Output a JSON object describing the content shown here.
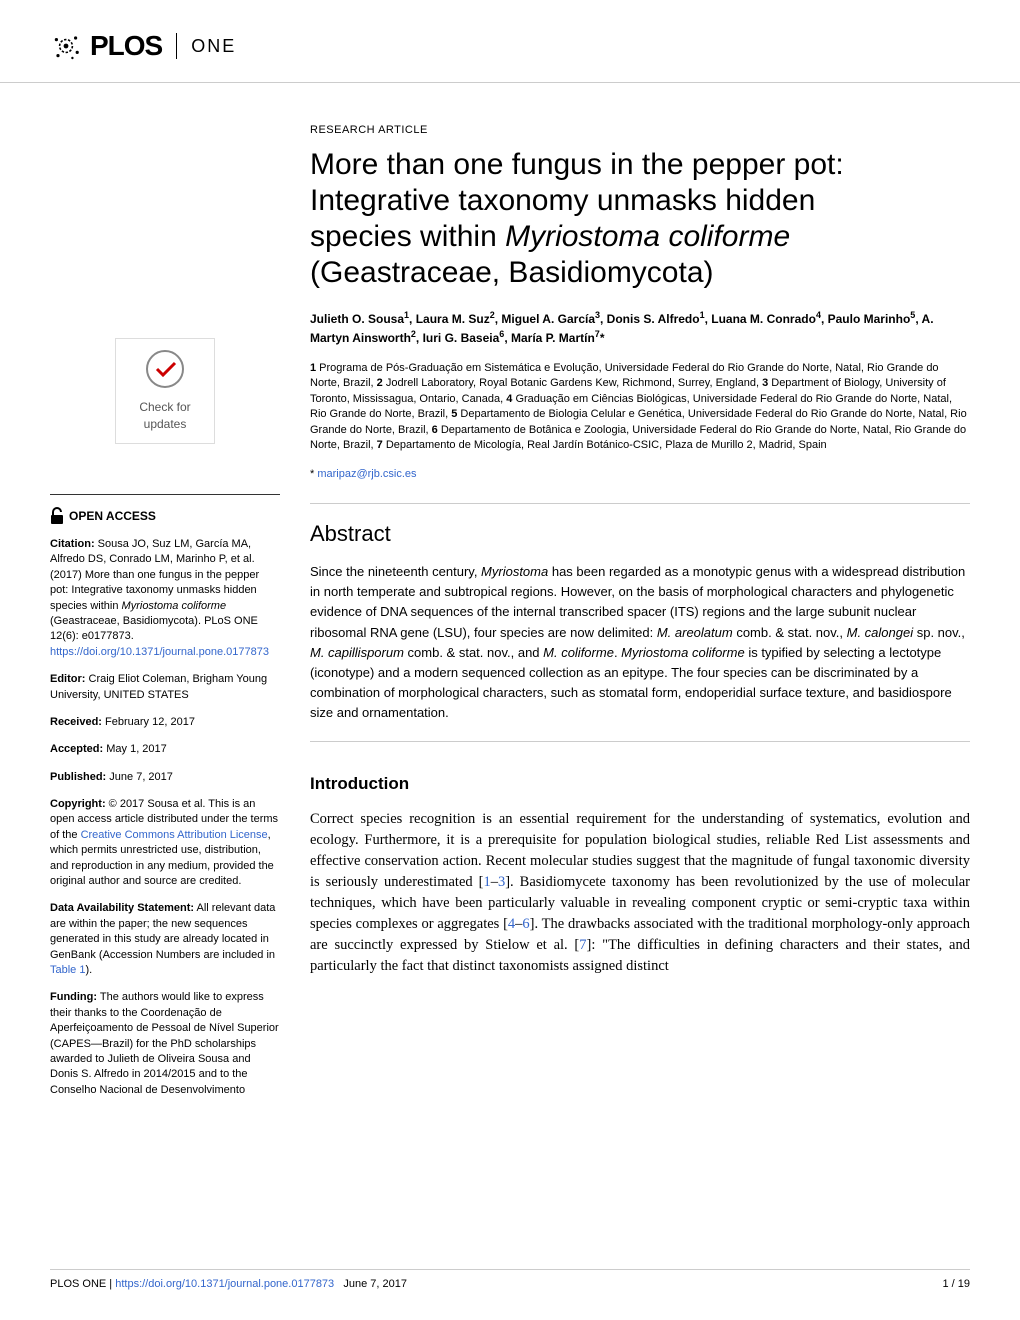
{
  "journal": {
    "name_part1": "PLOS",
    "name_part2": "ONE"
  },
  "article": {
    "type": "RESEARCH ARTICLE",
    "title_line1": "More than one fungus in the pepper pot:",
    "title_line2": "Integrative taxonomy unmasks hidden",
    "title_line3_pre": "species within ",
    "title_line3_italic": "Myriostoma coliforme",
    "title_line4": "(Geastraceae, Basidiomycota)"
  },
  "authors_html": "Julieth O. Sousa<sup>1</sup>, Laura M. Suz<sup>2</sup>, Miguel A. García<sup>3</sup>, Donis S. Alfredo<sup>1</sup>, Luana M. Conrado<sup>4</sup>, Paulo Marinho<sup>5</sup>, A. Martyn Ainsworth<sup>2</sup>, Iuri G. Baseia<sup>6</sup>, María P. Martín<sup>7</sup>*",
  "affiliations_html": "<span class='aff-num'>1</span> Programa de Pós-Graduação em Sistemática e Evolução, Universidade Federal do Rio Grande do Norte, Natal, Rio Grande do Norte, Brazil, <span class='aff-num'>2</span> Jodrell Laboratory, Royal Botanic Gardens Kew, Richmond, Surrey, England, <span class='aff-num'>3</span> Department of Biology, University of Toronto, Mississagua, Ontario, Canada, <span class='aff-num'>4</span> Graduação em Ciências Biológicas, Universidade Federal do Rio Grande do Norte, Natal, Rio Grande do Norte, Brazil, <span class='aff-num'>5</span> Departamento de Biologia Celular e Genética, Universidade Federal do Rio Grande do Norte, Natal, Rio Grande do Norte, Brazil, <span class='aff-num'>6</span> Departamento de Botânica e Zoologia, Universidade Federal do Rio Grande do Norte, Natal, Rio Grande do Norte, Brazil, <span class='aff-num'>7</span> Departamento de Micología, Real Jardín Botánico-CSIC, Plaza de Murillo 2, Madrid, Spain",
  "correspondence": {
    "star": "*",
    "email": "maripaz@rjb.csic.es"
  },
  "abstract": {
    "heading": "Abstract",
    "text_html": "Since the nineteenth century, <span class='italic'>Myriostoma</span> has been regarded as a monotypic genus with a widespread distribution in north temperate and subtropical regions. However, on the basis of morphological characters and phylogenetic evidence of DNA sequences of the internal transcribed spacer (ITS) regions and the large subunit nuclear ribosomal RNA gene (LSU), four species are now delimited: <span class='italic'>M. areolatum</span> comb. & stat. nov., <span class='italic'>M. calongei</span> sp. nov., <span class='italic'>M. capillisporum</span> comb. & stat. nov., and <span class='italic'>M. coliforme</span>. <span class='italic'>Myriostoma coliforme</span> is typified by selecting a lectotype (iconotype) and a modern sequenced collection as an epitype. The four species can be discriminated by a combination of morphological characters, such as stomatal form, endoperidial surface texture, and basidiospore size and ornamentation."
  },
  "intro": {
    "heading": "Introduction",
    "text_html": "Correct species recognition is an essential requirement for the understanding of systematics, evolution and ecology. Furthermore, it is a prerequisite for population biological studies, reliable Red List assessments and effective conservation action. Recent molecular studies suggest that the magnitude of fungal taxonomic diversity is seriously underestimated [<span class='link'>1</span>–<span class='link'>3</span>]. Basidiomycete taxonomy has been revolutionized by the use of molecular techniques, which have been particularly valuable in revealing component cryptic or semi-cryptic taxa within species complexes or aggregates [<span class='link'>4</span>–<span class='link'>6</span>]. The drawbacks associated with the traditional morphology-only approach are succinctly expressed by Stielow et al. [<span class='link'>7</span>]: \"The difficulties in defining characters and their states, and particularly the fact that distinct taxonomists assigned distinct"
  },
  "sidebar": {
    "check_updates": "Check for updates",
    "open_access": "OPEN ACCESS",
    "citation_label": "Citation:",
    "citation_text": " Sousa JO, Suz LM, García MA, Alfredo DS, Conrado LM, Marinho P, et al. (2017) More than one fungus in the pepper pot: Integrative taxonomy unmasks hidden species within ",
    "citation_italic": "Myriostoma coliforme",
    "citation_text2": " (Geastraceae, Basidiomycota). PLoS ONE 12(6): e0177873. ",
    "citation_doi": "https://doi.org/10.1371/journal.pone.0177873",
    "editor_label": "Editor:",
    "editor_text": " Craig Eliot Coleman, Brigham Young University, UNITED STATES",
    "received_label": "Received:",
    "received_text": " February 12, 2017",
    "accepted_label": "Accepted:",
    "accepted_text": " May 1, 2017",
    "published_label": "Published:",
    "published_text": " June 7, 2017",
    "copyright_label": "Copyright:",
    "copyright_text1": " © 2017 Sousa et al. This is an open access article distributed under the terms of the ",
    "copyright_link": "Creative Commons Attribution License",
    "copyright_text2": ", which permits unrestricted use, distribution, and reproduction in any medium, provided the original author and source are credited.",
    "data_label": "Data Availability Statement:",
    "data_text1": " All relevant data are within the paper; the new sequences generated in this study are already located in GenBank (Accession Numbers are included in ",
    "data_link": "Table 1",
    "data_text2": ").",
    "funding_label": "Funding:",
    "funding_text": " The authors would like to express their thanks to the Coordenação de Aperfeiçoamento de Pessoal de Nível Superior (CAPES—Brazil) for the PhD scholarships awarded to Julieth de Oliveira Sousa and Donis S. Alfredo in 2014/2015 and to the Conselho Nacional de Desenvolvimento"
  },
  "footer": {
    "journal": "PLOS ONE | ",
    "doi": "https://doi.org/10.1371/journal.pone.0177873",
    "date": "June 7, 2017",
    "page": "1 / 19"
  },
  "colors": {
    "link": "#3366cc",
    "text": "#000000",
    "rule": "#cccccc"
  }
}
